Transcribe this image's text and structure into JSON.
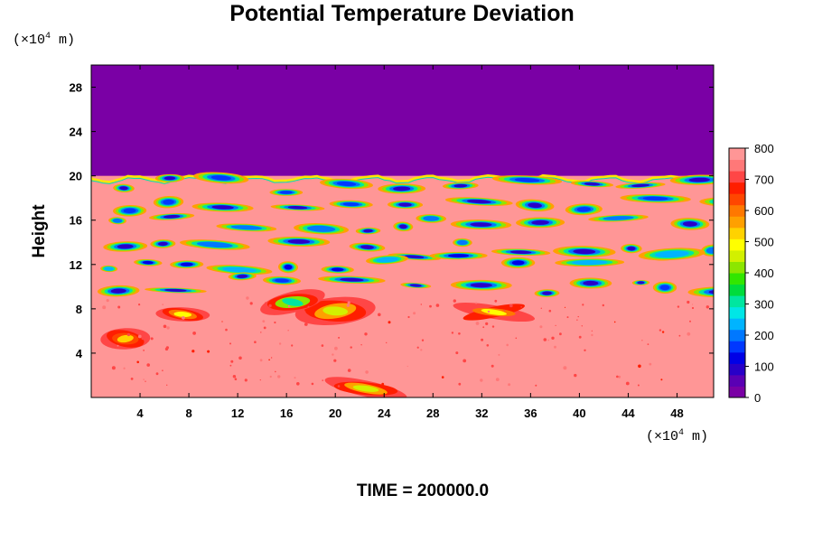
{
  "chart_data": {
    "type": "heatmap",
    "title": "Potential Temperature Deviation",
    "ylabel": "Height",
    "xlabel": "",
    "y_unit": {
      "prefix": "(×10",
      "exp": "4",
      "suffix": " m)"
    },
    "x_unit": {
      "prefix": "(×10",
      "exp": "4",
      "suffix": " m)"
    },
    "xlim": [
      0,
      51
    ],
    "ylim": [
      0,
      30
    ],
    "x_ticks": [
      "4",
      "8",
      "12",
      "16",
      "20",
      "24",
      "28",
      "32",
      "36",
      "40",
      "44",
      "48"
    ],
    "y_ticks": [
      "4",
      "8",
      "12",
      "16",
      "20",
      "24",
      "28"
    ],
    "colorbar": {
      "range": [
        0,
        800
      ],
      "ticks": [
        "0",
        "100",
        "200",
        "300",
        "400",
        "500",
        "600",
        "700",
        "800"
      ],
      "colors": [
        "#7a00a5",
        "#5a00b4",
        "#2800c8",
        "#0000e6",
        "#0038ff",
        "#0078ff",
        "#00b4ff",
        "#00e6e6",
        "#00e6a0",
        "#00dc3c",
        "#32e600",
        "#8ce600",
        "#d2f000",
        "#ffff00",
        "#ffd200",
        "#ffa000",
        "#ff7800",
        "#ff4600",
        "#ff1e00",
        "#ff4646",
        "#ff7878",
        "#ff9696"
      ]
    },
    "fields": {
      "upper_region": {
        "y_range": [
          20,
          30
        ],
        "value": 0
      },
      "mid_region_bands": [
        {
          "y": 19.3,
          "value": 40
        },
        {
          "y": 17.5,
          "value": 40
        },
        {
          "y": 15.7,
          "value": 60
        },
        {
          "y": 13.3,
          "value": 80
        },
        {
          "y": 12.2,
          "value": 120
        },
        {
          "y": 10.2,
          "value": 40
        }
      ],
      "lower_background": 800,
      "lower_warm_features": [
        {
          "x": 20,
          "y": 7.8,
          "value": 560
        },
        {
          "x": 16.5,
          "y": 8.6,
          "value": 420
        },
        {
          "x": 7.5,
          "y": 7.5,
          "value": 600
        },
        {
          "x": 33,
          "y": 7.7,
          "value": 600
        },
        {
          "x": 2.8,
          "y": 5.3,
          "value": 650
        },
        {
          "x": 22.5,
          "y": 0.8,
          "value": 560
        }
      ]
    },
    "grid": false,
    "legend": "colorbar-right"
  },
  "footer": {
    "label": "TIME = 200000.0"
  }
}
